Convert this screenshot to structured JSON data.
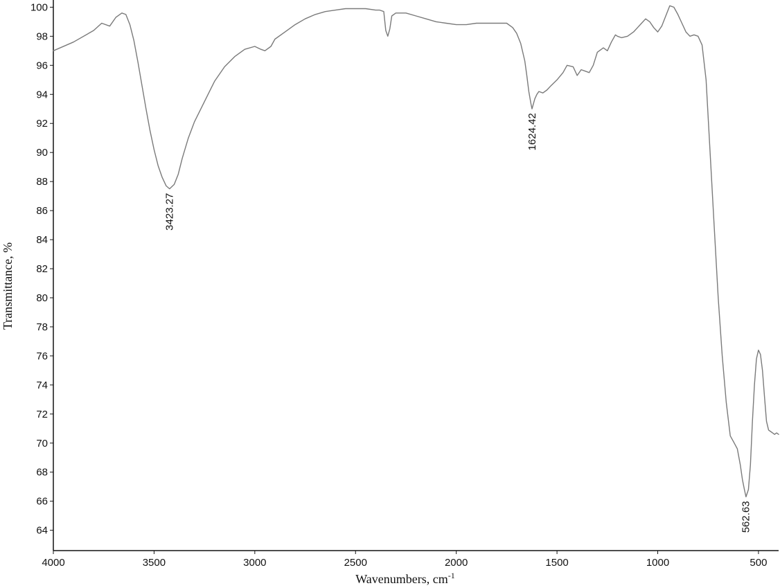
{
  "chart_data": {
    "type": "line",
    "xlabel": "Wavenumbers, cm",
    "xlabel_superscript": "-1",
    "ylabel": "Transmittance, %",
    "xlim": [
      4000,
      400
    ],
    "ylim": [
      62.6,
      100.4
    ],
    "x_reversed": true,
    "grid": false,
    "line_color": "#7a7a7a",
    "x_ticks": [
      4000,
      3500,
      3000,
      2500,
      2000,
      1500,
      1000,
      500
    ],
    "x_tick_labels": [
      "4000",
      "3500",
      "3000",
      "2500",
      "2000",
      "1500",
      "1000",
      "500"
    ],
    "y_ticks": [
      64,
      66,
      68,
      70,
      72,
      74,
      76,
      78,
      80,
      82,
      84,
      86,
      88,
      90,
      92,
      94,
      96,
      98,
      100
    ],
    "y_tick_labels": [
      "64",
      "66",
      "68",
      "70",
      "72",
      "74",
      "76",
      "78",
      "80",
      "82",
      "84",
      "86",
      "88",
      "90",
      "92",
      "94",
      "96",
      "98",
      "100"
    ],
    "series": [
      {
        "x": [
          4000,
          3900,
          3800,
          3760,
          3720,
          3690,
          3660,
          3640,
          3620,
          3600,
          3580,
          3560,
          3540,
          3520,
          3500,
          3480,
          3460,
          3440,
          3423,
          3400,
          3380,
          3360,
          3330,
          3300,
          3250,
          3200,
          3150,
          3100,
          3050,
          3000,
          2970,
          2950,
          2920,
          2900,
          2850,
          2800,
          2750,
          2700,
          2650,
          2600,
          2550,
          2500,
          2450,
          2400,
          2380,
          2360,
          2350,
          2340,
          2330,
          2320,
          2300,
          2250,
          2200,
          2150,
          2100,
          2050,
          2000,
          1950,
          1900,
          1850,
          1800,
          1750,
          1720,
          1700,
          1680,
          1660,
          1650,
          1640,
          1630,
          1624,
          1610,
          1600,
          1590,
          1570,
          1550,
          1530,
          1500,
          1470,
          1450,
          1420,
          1400,
          1380,
          1360,
          1340,
          1320,
          1300,
          1270,
          1250,
          1230,
          1210,
          1200,
          1180,
          1150,
          1120,
          1100,
          1080,
          1060,
          1040,
          1020,
          1000,
          980,
          960,
          940,
          920,
          900,
          880,
          860,
          840,
          820,
          800,
          780,
          760,
          740,
          720,
          700,
          680,
          660,
          640,
          620,
          605,
          590,
          580,
          570,
          562,
          550,
          540,
          530,
          520,
          510,
          500,
          490,
          480,
          470,
          460,
          450,
          440,
          430,
          420,
          410,
          400
        ],
        "y": [
          97.0,
          97.6,
          98.4,
          98.9,
          98.7,
          99.3,
          99.6,
          99.5,
          98.8,
          97.7,
          96.2,
          94.6,
          93.0,
          91.5,
          90.2,
          89.1,
          88.3,
          87.7,
          87.5,
          87.8,
          88.5,
          89.6,
          91.0,
          92.1,
          93.5,
          94.9,
          95.9,
          96.6,
          97.1,
          97.3,
          97.1,
          97.0,
          97.3,
          97.8,
          98.3,
          98.8,
          99.2,
          99.5,
          99.7,
          99.8,
          99.9,
          99.9,
          99.9,
          99.8,
          99.8,
          99.7,
          98.4,
          98.0,
          98.5,
          99.4,
          99.6,
          99.6,
          99.4,
          99.2,
          99.0,
          98.9,
          98.8,
          98.8,
          98.9,
          98.9,
          98.9,
          98.9,
          98.6,
          98.2,
          97.5,
          96.3,
          95.3,
          94.2,
          93.4,
          93.0,
          93.7,
          94.0,
          94.2,
          94.1,
          94.3,
          94.6,
          95.0,
          95.5,
          96.0,
          95.9,
          95.3,
          95.7,
          95.6,
          95.5,
          96.0,
          96.9,
          97.2,
          97.0,
          97.6,
          98.1,
          98.0,
          97.9,
          98.0,
          98.3,
          98.6,
          98.9,
          99.2,
          99.0,
          98.6,
          98.3,
          98.7,
          99.4,
          100.1,
          100.0,
          99.5,
          98.9,
          98.3,
          98.0,
          98.1,
          98.0,
          97.4,
          95.0,
          90.0,
          85.0,
          80.0,
          76.0,
          72.8,
          70.5,
          70.0,
          69.6,
          68.5,
          67.5,
          66.8,
          66.3,
          66.8,
          68.5,
          71.5,
          74.0,
          75.8,
          76.4,
          76.1,
          75.0,
          73.2,
          71.5,
          70.9,
          70.8,
          70.7,
          70.6,
          70.7,
          70.6
        ]
      }
    ],
    "annotations": [
      {
        "x": 3423.27,
        "y": 87.5,
        "text": "3423.27"
      },
      {
        "x": 1624.42,
        "y": 93.0,
        "text": "1624.42"
      },
      {
        "x": 562.63,
        "y": 66.3,
        "text": "562.63"
      }
    ]
  }
}
